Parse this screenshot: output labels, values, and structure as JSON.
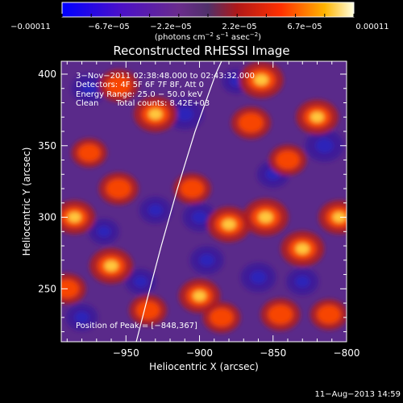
{
  "chart_data": {
    "type": "heatmap",
    "title": "Reconstructed RHESSI Image",
    "xlabel": "Heliocentric X (arcsec)",
    "ylabel": "Heliocentric Y (arcsec)",
    "xlim": [
      -994,
      -800
    ],
    "ylim": [
      213,
      409
    ],
    "x_ticks": [
      -950,
      -900,
      -850,
      -800
    ],
    "x_tick_labels": [
      "−950",
      "−900",
      "−850",
      "−800"
    ],
    "y_ticks": [
      250,
      300,
      350,
      400
    ],
    "y_tick_labels": [
      "250",
      "300",
      "350",
      "400"
    ],
    "colorbar": {
      "ticks": [
        "−0.00011",
        "−6.7e−05",
        "−2.2e−05",
        "2.2e−05",
        "6.7e−05",
        "0.00011"
      ],
      "unit_main": "(photons cm",
      "unit_exp1": "−2",
      "unit_mid": " s",
      "unit_exp2": "−1",
      "unit_end": " asec",
      "unit_exp3": "−2",
      "unit_close": ")",
      "range": [
        -0.00011,
        0.00011
      ]
    },
    "annotations": {
      "time": "3−Nov−2011 02:38:48.000 to 02:43:32.000",
      "detectors": "Detectors: 4F 5F 6F 7F 8F, Att 0",
      "energy": "Energy Range: 25.0 − 50.0 keV",
      "clean": "Clean",
      "counts": "Total counts: 8.42E+03",
      "peak": "Position of Peak = [−848,367]"
    },
    "limb_curve": [
      [
        -943,
        213
      ],
      [
        -935,
        245
      ],
      [
        -926,
        280
      ],
      [
        -915,
        320
      ],
      [
        -903,
        360
      ],
      [
        -889,
        400
      ],
      [
        -885,
        409
      ]
    ],
    "hotspots": [
      [
        -858,
        396,
        0.95
      ],
      [
        -865,
        366,
        0.7
      ],
      [
        -855,
        300,
        1.0
      ],
      [
        -830,
        278,
        0.9
      ],
      [
        -805,
        300,
        0.8
      ],
      [
        -820,
        370,
        0.85
      ],
      [
        -880,
        295,
        0.9
      ],
      [
        -930,
        372,
        0.9
      ],
      [
        -955,
        392,
        0.7
      ],
      [
        -985,
        300,
        0.8
      ],
      [
        -955,
        320,
        0.7
      ],
      [
        -960,
        266,
        0.9
      ],
      [
        -935,
        235,
        0.6
      ],
      [
        -900,
        245,
        0.8
      ],
      [
        -885,
        230,
        0.6
      ],
      [
        -845,
        232,
        0.7
      ],
      [
        -812,
        232,
        0.6
      ],
      [
        -990,
        250,
        0.6
      ],
      [
        -975,
        345,
        0.5
      ],
      [
        -905,
        320,
        0.6
      ],
      [
        -840,
        340,
        0.6
      ]
    ],
    "coldspots": [
      [
        -975,
        390,
        0.8
      ],
      [
        -900,
        300,
        0.7
      ],
      [
        -910,
        372,
        0.9
      ],
      [
        -850,
        330,
        0.6
      ],
      [
        -895,
        270,
        0.7
      ],
      [
        -860,
        258,
        0.8
      ],
      [
        -815,
        350,
        1.0
      ],
      [
        -980,
        230,
        0.6
      ],
      [
        -930,
        305,
        0.6
      ],
      [
        -965,
        290,
        0.5
      ],
      [
        -830,
        255,
        0.6
      ],
      [
        -875,
        395,
        0.4
      ],
      [
        -940,
        255,
        0.5
      ]
    ]
  },
  "footer": {
    "date": "11−Aug−2013 14:59"
  }
}
